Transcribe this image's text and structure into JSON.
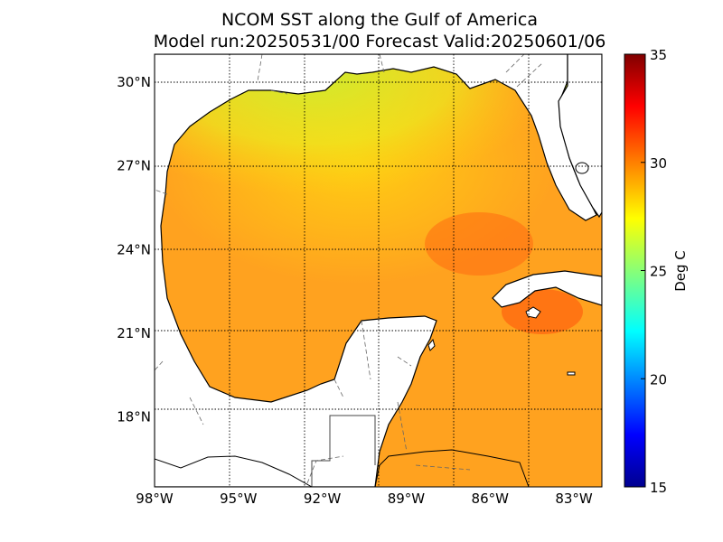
{
  "title": {
    "line1": "NCOM SST along the Gulf of America",
    "line2": "Model run:20250531/00 Forecast Valid:20250601/06"
  },
  "map": {
    "lon_range": [
      -98,
      -82
    ],
    "lat_range": [
      15.5,
      31
    ],
    "lon_ticks": [
      {
        "value": -98,
        "label": "98°W"
      },
      {
        "value": -95,
        "label": "95°W"
      },
      {
        "value": -92,
        "label": "92°W"
      },
      {
        "value": -89,
        "label": "89°W"
      },
      {
        "value": -86,
        "label": "86°W"
      },
      {
        "value": -83,
        "label": "83°W"
      }
    ],
    "lat_ticks": [
      {
        "value": 30,
        "label": "30°N"
      },
      {
        "value": 27,
        "label": "27°N"
      },
      {
        "value": 24,
        "label": "24°N"
      },
      {
        "value": 21,
        "label": "21°N"
      },
      {
        "value": 18,
        "label": "18°N"
      }
    ]
  },
  "colorbar": {
    "label": "Deg C",
    "min": 15,
    "max": 35,
    "ticks": [
      {
        "value": 35,
        "label": "35"
      },
      {
        "value": 30,
        "label": "30"
      },
      {
        "value": 25,
        "label": "25"
      },
      {
        "value": 20,
        "label": "20"
      },
      {
        "value": 15,
        "label": "15"
      }
    ]
  },
  "colors": {
    "land": "#ffffff",
    "coastline": "#000000",
    "warm_water": "#ffa21f",
    "mid_water": "#ffcc10",
    "cool_water": "#c8f030",
    "hot_water": "#ff6a10",
    "jet_0": "#00008f",
    "jet_1": "#0000ff",
    "jet_2": "#00ffff",
    "jet_3": "#ffff00",
    "jet_4": "#ff0000",
    "jet_5": "#800000"
  }
}
